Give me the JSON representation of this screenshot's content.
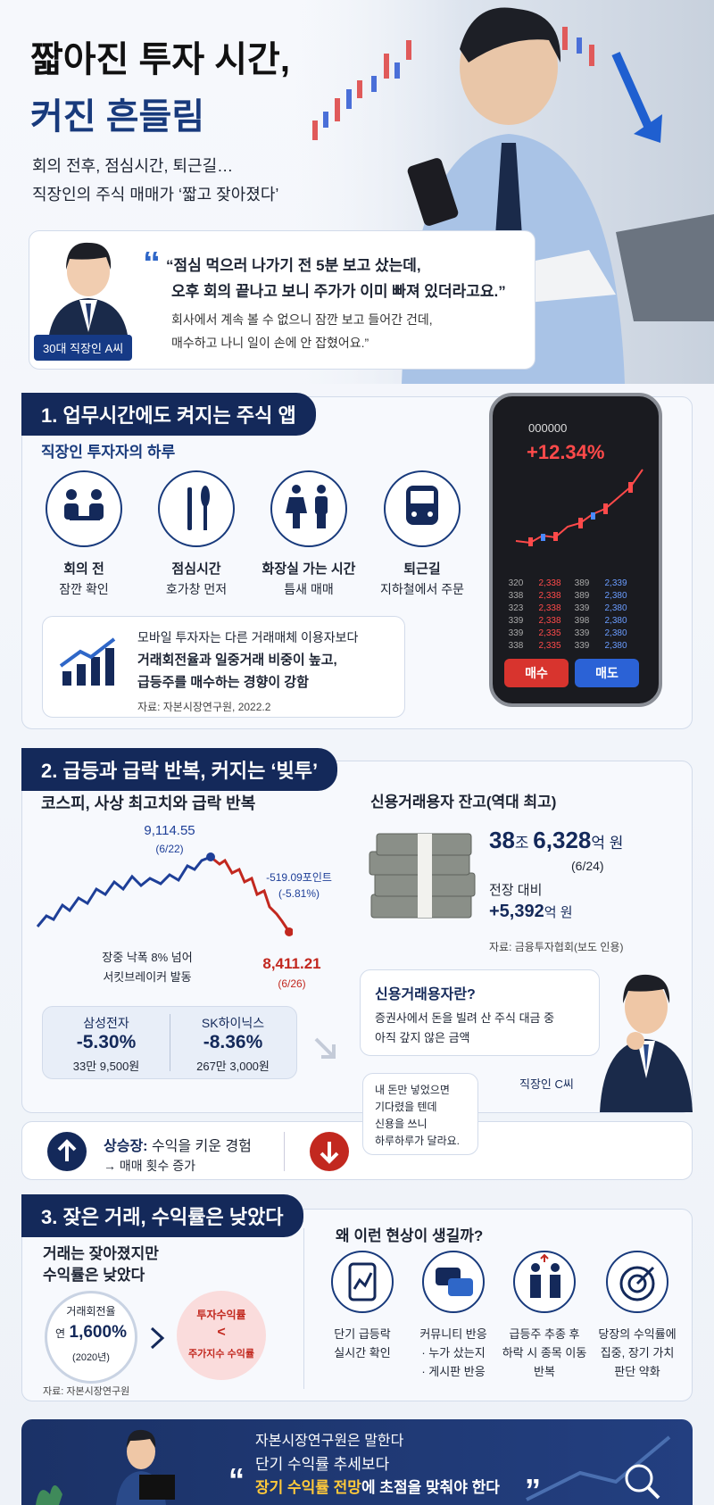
{
  "header": {
    "title": [
      "짧아진 투자 시간,",
      "커진 흔들림"
    ],
    "subtitle": [
      "회의 전후, 점심시간, 퇴근길…",
      "직장인의 주식 매매가 ‘짧고 잦아졌다’"
    ]
  },
  "quote": {
    "speaker": "30대 직장인 A씨",
    "main": [
      "“점심 먹으러 나가기 전 5분 보고 샀는데,",
      "오후 회의 끝나고 보니 주가가 이미 빠져 있더라고요.”"
    ],
    "sub": [
      "회사에서 계속 볼 수 없으니 잠깐 보고 들어간 건데,",
      "매수하고 나니 일이 손에 안 잡혔어요.”"
    ]
  },
  "section1": {
    "heading": "1. 업무시간에도 켜지는 주식 앱",
    "subheading": "직장인 투자자의 하루",
    "items": [
      {
        "label": "회의 전",
        "desc": "잠깐 확인"
      },
      {
        "label": "점심시간",
        "desc": "호가창 먼저"
      },
      {
        "label": "화장실 가는 시간",
        "desc": "틈새 매매"
      },
      {
        "label": "퇴근길",
        "desc": "지하철에서 주문"
      }
    ],
    "note": [
      "모바일 투자자는 다른 거래매체 이용자보다",
      "거래회전율과 일중거래 비중이 높고,",
      "급등주를 매수하는 경향이 강함"
    ],
    "source": "자료: 자본시장연구원, 2022.2",
    "phone": {
      "code": "000000",
      "change": "+12.34%",
      "book": [
        [
          "320",
          "2,338",
          "389",
          "2,339"
        ],
        [
          "338",
          "2,338",
          "389",
          "2,380"
        ],
        [
          "323",
          "2,338",
          "339",
          "2,380"
        ],
        [
          "339",
          "2,338",
          "398",
          "2,380"
        ],
        [
          "339",
          "2,335",
          "339",
          "2,380"
        ],
        [
          "338",
          "2,335",
          "339",
          "2,380"
        ]
      ],
      "buy": "매수",
      "sell": "매도"
    }
  },
  "section2": {
    "heading": "2. 급등과 급락 반복, 커지는 ‘빚투’",
    "chart_title": "코스피, 사상 최고치와 급락 반복",
    "peak": {
      "value": "9,114.55",
      "date": "(6/22)"
    },
    "drop": {
      "points": "-519.09포인트",
      "pct": "(-5.81%)"
    },
    "note": [
      "장중 낙폭 8% 넘어",
      "서킷브레이커 발동"
    ],
    "low": {
      "value": "8,411.21",
      "date": "(6/26)"
    },
    "stocks": [
      {
        "name": "삼성전자",
        "change": "-5.30%",
        "price": "33만 9,500원"
      },
      {
        "name": "SK하이닉스",
        "change": "-8.36%",
        "price": "267만 3,000원"
      }
    ],
    "credit": {
      "title": "신용거래용자 잔고(역대 최고)",
      "amount": [
        "38",
        "조 ",
        "6,328",
        "억 원"
      ],
      "date": "(6/24)",
      "compare": "전장 대비",
      "increase": [
        "+5,392",
        "억 원"
      ],
      "source": "자료: 금융투자협회(보도 인용)"
    },
    "definition": {
      "title": "신용거래용자란?",
      "text": [
        "증권사에서 돈을 빌려 산 주식 대금 중",
        "아직 갚지 않은 금액"
      ]
    },
    "speaker": "직장인 C씨",
    "bubble": [
      "내 돈만 넣었으면",
      "기다렸을 텐데",
      "신용을 쓰니",
      "하루하루가 달라요."
    ],
    "bar": {
      "label": "상승장:",
      "text": "수익을 키운 경험",
      "result": "→ 매매 횟수 증가"
    }
  },
  "section3": {
    "heading": "3. 잦은 거래, 수익률은 낮았다",
    "left_title": [
      "거래는 잦아졌지만",
      "수익률은 낮았다"
    ],
    "turnover": {
      "label": "거래회전율",
      "prefix": "연",
      "value": "1,600%",
      "year": "(2020년)"
    },
    "compare": {
      "top": "투자수익률",
      "sign": "<",
      "bottom": "주가지수 수익률"
    },
    "source": "자료: 자본시장연구원",
    "why_title": "왜 이런 현상이 생길까?",
    "reasons": [
      [
        "단기 급등락",
        "실시간 확인"
      ],
      [
        "커뮤니티 반응",
        "· 누가 샀는지",
        "· 게시판 반응"
      ],
      [
        "급등주 추종 후",
        "하락 시 종목 이동",
        "반복"
      ],
      [
        "당장의 수익률에",
        "집중, 장기 가치",
        "판단 약화"
      ]
    ]
  },
  "footer": {
    "lead": "자본시장연구원은 말한다",
    "line1": "단기 수익률 추세보다",
    "highlight": "장기 수익률 전망",
    "rest": "에 초점을 맞춰야 한다"
  }
}
